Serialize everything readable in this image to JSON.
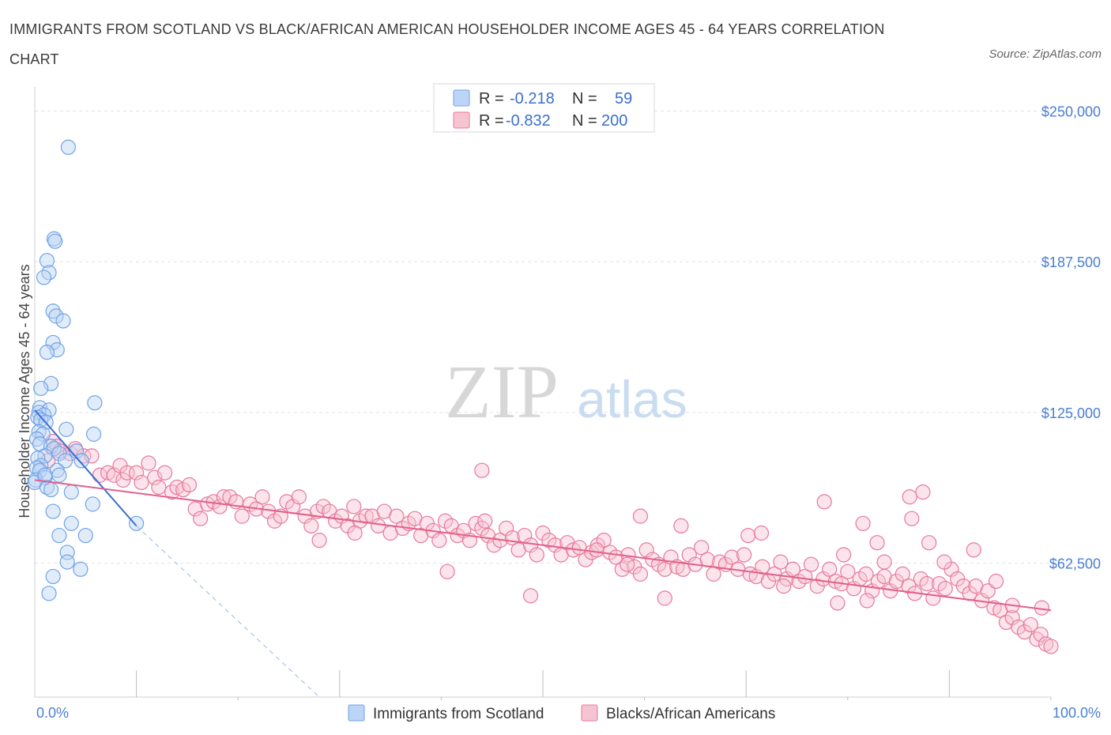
{
  "title": "IMMIGRANTS FROM SCOTLAND VS BLACK/AFRICAN AMERICAN HOUSEHOLDER INCOME AGES 45 - 64 YEARS CORRELATION CHART",
  "source": "Source: ZipAtlas.com",
  "watermark": {
    "zip": "ZIP",
    "atlas": "atlas"
  },
  "colors": {
    "blue": "#6fa3e8",
    "blue_fill": "#bcd4f5",
    "pink": "#e8789c",
    "pink_fill": "#f6c3d3",
    "axis_text": "#4a7fd4"
  },
  "legend": {
    "r_label": "R =",
    "n_label": "N =",
    "rows": [
      {
        "r": "-0.218",
        "n": "59"
      },
      {
        "r": "-0.832",
        "n": "200"
      }
    ]
  },
  "chart_data": {
    "type": "scatter",
    "xlabel": "",
    "ylabel": "Householder Income Ages 45 - 64 years",
    "xlim": [
      0,
      100
    ],
    "ylim": [
      7000,
      260000
    ],
    "x_tick_labels": [
      "0.0%",
      "100.0%"
    ],
    "y_ticks": [
      62500,
      125000,
      187500,
      250000
    ],
    "y_tick_labels": [
      "$62,500",
      "$125,000",
      "$187,500",
      "$250,000"
    ],
    "grid": true,
    "series": [
      {
        "name": "Immigrants from Scotland",
        "color": "#6fa3e8",
        "trend": {
          "x": [
            0,
            10
          ],
          "y": [
            126000,
            78000
          ],
          "dash_to": [
            28,
            7000
          ]
        },
        "points": [
          [
            3.3,
            235000
          ],
          [
            1.9,
            197000
          ],
          [
            2.0,
            196000
          ],
          [
            1.2,
            188000
          ],
          [
            1.4,
            183000
          ],
          [
            0.9,
            181000
          ],
          [
            1.8,
            167000
          ],
          [
            2.1,
            165000
          ],
          [
            2.8,
            163000
          ],
          [
            1.8,
            154000
          ],
          [
            2.2,
            151000
          ],
          [
            1.2,
            150000
          ],
          [
            1.6,
            137000
          ],
          [
            0.6,
            135000
          ],
          [
            0.5,
            127000
          ],
          [
            1.4,
            126000
          ],
          [
            0.4,
            125000
          ],
          [
            0.9,
            124000
          ],
          [
            0.3,
            123000
          ],
          [
            0.6,
            122000
          ],
          [
            1.1,
            121000
          ],
          [
            5.9,
            129000
          ],
          [
            3.1,
            118000
          ],
          [
            5.8,
            116000
          ],
          [
            0.4,
            117000
          ],
          [
            0.8,
            116000
          ],
          [
            0.2,
            114000
          ],
          [
            0.5,
            112000
          ],
          [
            1.6,
            111000
          ],
          [
            1.9,
            110000
          ],
          [
            4.1,
            109000
          ],
          [
            2.4,
            108000
          ],
          [
            1.0,
            107000
          ],
          [
            0.3,
            106000
          ],
          [
            4.6,
            105000
          ],
          [
            3.0,
            105000
          ],
          [
            0.6,
            103000
          ],
          [
            0.2,
            102000
          ],
          [
            0.5,
            101000
          ],
          [
            2.2,
            101000
          ],
          [
            2.4,
            99000
          ],
          [
            1.0,
            98000
          ],
          [
            0.1,
            97000
          ],
          [
            0.0,
            96000
          ],
          [
            1.2,
            94000
          ],
          [
            1.6,
            93000
          ],
          [
            3.6,
            92000
          ],
          [
            5.7,
            87000
          ],
          [
            1.8,
            84000
          ],
          [
            3.6,
            79000
          ],
          [
            2.4,
            74000
          ],
          [
            10.0,
            79000
          ],
          [
            5.0,
            74000
          ],
          [
            3.2,
            67000
          ],
          [
            3.2,
            63000
          ],
          [
            4.5,
            60000
          ],
          [
            1.8,
            57000
          ],
          [
            1.4,
            50000
          ],
          [
            1.0,
            99000
          ]
        ]
      },
      {
        "name": "Blacks/African Americans",
        "color": "#e8789c",
        "trend": {
          "x": [
            0,
            100
          ],
          "y": [
            97000,
            43000
          ]
        },
        "points": [
          [
            1.3,
            105000
          ],
          [
            1.8,
            113000
          ],
          [
            2.2,
            111000
          ],
          [
            2.5,
            109000
          ],
          [
            3.5,
            108000
          ],
          [
            4.0,
            110000
          ],
          [
            4.8,
            107000
          ],
          [
            5.6,
            107000
          ],
          [
            6.4,
            99000
          ],
          [
            7.2,
            100000
          ],
          [
            7.8,
            99000
          ],
          [
            8.4,
            103000
          ],
          [
            8.7,
            97000
          ],
          [
            9.1,
            100000
          ],
          [
            10.0,
            100000
          ],
          [
            10.5,
            96000
          ],
          [
            11.2,
            104000
          ],
          [
            11.8,
            98000
          ],
          [
            12.2,
            94000
          ],
          [
            12.8,
            100000
          ],
          [
            13.5,
            92000
          ],
          [
            14.0,
            94000
          ],
          [
            14.6,
            93000
          ],
          [
            15.2,
            95000
          ],
          [
            15.8,
            85000
          ],
          [
            16.3,
            81000
          ],
          [
            17.0,
            87000
          ],
          [
            17.6,
            88000
          ],
          [
            18.2,
            86000
          ],
          [
            18.6,
            90000
          ],
          [
            19.2,
            90000
          ],
          [
            19.8,
            88000
          ],
          [
            20.4,
            82000
          ],
          [
            21.2,
            87000
          ],
          [
            21.8,
            85000
          ],
          [
            22.4,
            90000
          ],
          [
            23.0,
            84000
          ],
          [
            23.6,
            80000
          ],
          [
            24.2,
            82000
          ],
          [
            24.8,
            88000
          ],
          [
            25.4,
            86000
          ],
          [
            26.0,
            90000
          ],
          [
            26.6,
            82000
          ],
          [
            27.2,
            78000
          ],
          [
            27.8,
            84000
          ],
          [
            28.4,
            86000
          ],
          [
            29.0,
            84000
          ],
          [
            29.6,
            80000
          ],
          [
            30.2,
            82000
          ],
          [
            30.8,
            78000
          ],
          [
            31.4,
            86000
          ],
          [
            32.0,
            80000
          ],
          [
            32.6,
            82000
          ],
          [
            33.2,
            82000
          ],
          [
            33.8,
            78000
          ],
          [
            34.4,
            84000
          ],
          [
            35.0,
            75000
          ],
          [
            35.6,
            82000
          ],
          [
            36.2,
            77000
          ],
          [
            36.8,
            79000
          ],
          [
            37.4,
            81000
          ],
          [
            38.0,
            74000
          ],
          [
            38.6,
            79000
          ],
          [
            39.2,
            76000
          ],
          [
            39.8,
            72000
          ],
          [
            40.4,
            80000
          ],
          [
            41.0,
            78000
          ],
          [
            41.6,
            74000
          ],
          [
            42.2,
            76000
          ],
          [
            42.8,
            72000
          ],
          [
            43.4,
            79000
          ],
          [
            44.0,
            77000
          ],
          [
            44.6,
            74000
          ],
          [
            45.2,
            70000
          ],
          [
            45.8,
            72000
          ],
          [
            46.4,
            77000
          ],
          [
            47.0,
            73000
          ],
          [
            47.6,
            68000
          ],
          [
            48.2,
            74000
          ],
          [
            48.8,
            70000
          ],
          [
            49.4,
            66000
          ],
          [
            50.0,
            75000
          ],
          [
            50.6,
            72000
          ],
          [
            51.2,
            70000
          ],
          [
            51.8,
            66000
          ],
          [
            52.4,
            71000
          ],
          [
            53.0,
            68000
          ],
          [
            53.6,
            69000
          ],
          [
            54.2,
            64000
          ],
          [
            54.8,
            67000
          ],
          [
            55.4,
            70000
          ],
          [
            56.0,
            72000
          ],
          [
            56.6,
            67000
          ],
          [
            57.2,
            65000
          ],
          [
            57.8,
            60000
          ],
          [
            58.4,
            66000
          ],
          [
            59.0,
            61000
          ],
          [
            59.6,
            58000
          ],
          [
            60.2,
            68000
          ],
          [
            60.8,
            64000
          ],
          [
            61.4,
            62000
          ],
          [
            62.0,
            60000
          ],
          [
            62.6,
            65000
          ],
          [
            63.2,
            61000
          ],
          [
            63.8,
            60000
          ],
          [
            64.4,
            66000
          ],
          [
            65.0,
            62000
          ],
          [
            65.6,
            69000
          ],
          [
            66.2,
            64000
          ],
          [
            66.8,
            58000
          ],
          [
            67.4,
            63000
          ],
          [
            68.0,
            62000
          ],
          [
            68.6,
            65000
          ],
          [
            69.2,
            60000
          ],
          [
            69.8,
            66000
          ],
          [
            70.4,
            58000
          ],
          [
            71.0,
            57000
          ],
          [
            71.6,
            61000
          ],
          [
            72.2,
            55000
          ],
          [
            72.8,
            58000
          ],
          [
            73.4,
            63000
          ],
          [
            74.0,
            56000
          ],
          [
            74.6,
            60000
          ],
          [
            75.2,
            55000
          ],
          [
            75.8,
            57000
          ],
          [
            76.4,
            62000
          ],
          [
            77.0,
            53000
          ],
          [
            77.6,
            56000
          ],
          [
            78.2,
            60000
          ],
          [
            78.8,
            55000
          ],
          [
            79.4,
            54000
          ],
          [
            80.0,
            59000
          ],
          [
            80.6,
            52000
          ],
          [
            81.2,
            56000
          ],
          [
            81.8,
            58000
          ],
          [
            82.4,
            51000
          ],
          [
            83.0,
            55000
          ],
          [
            83.6,
            57000
          ],
          [
            84.2,
            51000
          ],
          [
            84.8,
            55000
          ],
          [
            85.4,
            58000
          ],
          [
            86.0,
            53000
          ],
          [
            86.6,
            50000
          ],
          [
            87.2,
            56000
          ],
          [
            87.8,
            54000
          ],
          [
            88.4,
            48000
          ],
          [
            89.0,
            54000
          ],
          [
            89.6,
            52000
          ],
          [
            90.2,
            60000
          ],
          [
            90.8,
            56000
          ],
          [
            91.4,
            53000
          ],
          [
            92.0,
            50000
          ],
          [
            92.6,
            53000
          ],
          [
            93.2,
            47000
          ],
          [
            93.8,
            51000
          ],
          [
            94.4,
            44000
          ],
          [
            95.0,
            43000
          ],
          [
            95.6,
            38000
          ],
          [
            96.2,
            40000
          ],
          [
            96.8,
            36000
          ],
          [
            97.4,
            34000
          ],
          [
            98.0,
            37000
          ],
          [
            98.6,
            31000
          ],
          [
            99.0,
            33000
          ],
          [
            99.5,
            29000
          ],
          [
            100.0,
            28000
          ],
          [
            87.4,
            92000
          ],
          [
            86.1,
            90000
          ],
          [
            86.3,
            81000
          ],
          [
            88.0,
            71000
          ],
          [
            77.7,
            88000
          ],
          [
            81.5,
            79000
          ],
          [
            82.9,
            71000
          ],
          [
            44.3,
            80000
          ],
          [
            44.0,
            101000
          ],
          [
            63.6,
            78000
          ],
          [
            70.2,
            74000
          ],
          [
            83.6,
            63000
          ],
          [
            79.6,
            66000
          ],
          [
            59.6,
            82000
          ],
          [
            58.3,
            62000
          ],
          [
            71.5,
            75000
          ],
          [
            55.3,
            68000
          ],
          [
            40.6,
            59000
          ],
          [
            48.8,
            49000
          ],
          [
            62.0,
            48000
          ],
          [
            81.9,
            47000
          ],
          [
            79.0,
            46000
          ],
          [
            73.7,
            53000
          ],
          [
            89.5,
            63000
          ],
          [
            92.4,
            68000
          ],
          [
            94.6,
            55000
          ],
          [
            96.2,
            45000
          ],
          [
            99.1,
            44000
          ],
          [
            31.5,
            75000
          ],
          [
            28.0,
            72000
          ]
        ]
      }
    ]
  }
}
